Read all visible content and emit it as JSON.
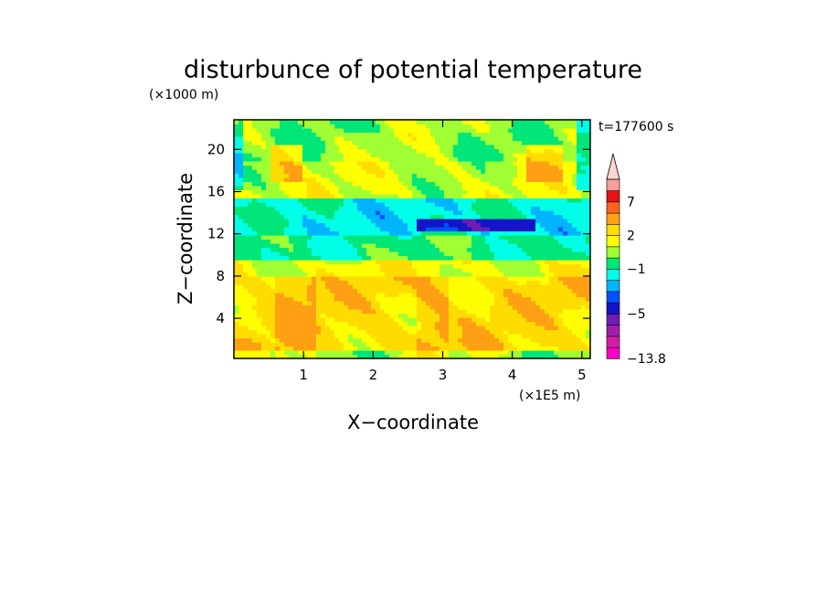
{
  "chart_data": {
    "type": "heatmap",
    "title": "disturbunce of potential temperature",
    "xlabel": "X−coordinate",
    "ylabel": "Z−coordinate",
    "x_unit": "(×1E5 m)",
    "y_unit": "(×1000 m)",
    "time_label": "t=177600 s",
    "xlim": [
      0,
      5.12
    ],
    "ylim": [
      0.2,
      22.8
    ],
    "xticks": [
      "1",
      "2",
      "3",
      "4",
      "5"
    ],
    "yticks": [
      "4",
      "8",
      "12",
      "16",
      "20"
    ],
    "colorbar": {
      "labels": [
        "7",
        "2",
        "−1",
        "−5",
        "−13.8"
      ],
      "label_levels": [
        7,
        2,
        -1,
        -5,
        -13.8
      ],
      "levels": [
        -13.8,
        -11,
        -9,
        -7,
        -5,
        -4,
        -3,
        -2,
        -1,
        0,
        1,
        2,
        3,
        5,
        7,
        9,
        12
      ],
      "colors": [
        "#ff00c8",
        "#d21ea5",
        "#a01eaa",
        "#6e1eb4",
        "#1414c8",
        "#0050ff",
        "#00b4ff",
        "#00ffe6",
        "#00e678",
        "#a0ff32",
        "#ffff00",
        "#ffdc00",
        "#ffa014",
        "#ff641e",
        "#e61414",
        "#f5a09b"
      ],
      "extend": "max"
    },
    "field": {
      "description": "layered contour field: bands by height with wave patterns",
      "bands": [
        {
          "z": [
            0.2,
            1.0
          ],
          "level": 0.5
        },
        {
          "z": [
            1.0,
            8.0
          ],
          "level": 2.3
        },
        {
          "z": [
            8.0,
            9.5
          ],
          "level": 1.5
        },
        {
          "z": [
            9.5,
            12.0
          ],
          "level": -0.5
        },
        {
          "z": [
            12.0,
            15.5
          ],
          "level": -1.5
        },
        {
          "z": [
            15.5,
            19.0
          ],
          "level": 1.0
        },
        {
          "z": [
            19.0,
            22.8
          ],
          "level": 0.5
        }
      ]
    }
  }
}
